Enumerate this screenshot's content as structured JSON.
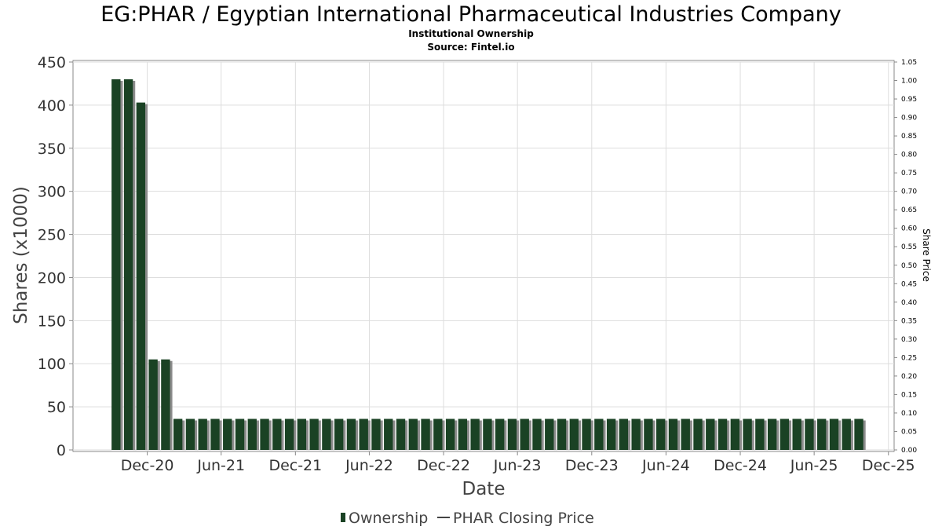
{
  "header": {
    "title": "EG:PHAR / Egyptian International Pharmaceutical Industries Company",
    "subtitle": "Institutional Ownership",
    "source": "Source: Fintel.io"
  },
  "legend": {
    "placement": "bottom-center",
    "items": [
      {
        "label": "Ownership",
        "icon": "bar-swatch-icon"
      },
      {
        "label": "PHAR Closing Price",
        "icon": "line-swatch-icon"
      }
    ]
  },
  "colors": {
    "bar": "#1a4224",
    "bar_shadow": "#8c8c8c",
    "grid": "#dddddd",
    "frame": "#888888"
  },
  "chart_data": {
    "type": "bar",
    "xlabel": "Date",
    "ylabel": "Shares (x1000)",
    "y2label": "Share Price",
    "grid": true,
    "ylim": [
      0,
      450
    ],
    "y2lim": [
      0,
      1.05
    ],
    "yticks": [
      "0",
      "50",
      "100",
      "150",
      "200",
      "250",
      "300",
      "350",
      "400",
      "450"
    ],
    "y2ticks": [
      "0.00",
      "0.05",
      "0.10",
      "0.15",
      "0.20",
      "0.25",
      "0.30",
      "0.35",
      "0.40",
      "0.45",
      "0.50",
      "0.55",
      "0.60",
      "0.65",
      "0.70",
      "0.75",
      "0.80",
      "0.85",
      "0.90",
      "0.95",
      "1.00",
      "1.05"
    ],
    "xlim": [
      "2020-06-01",
      "2025-12-15"
    ],
    "xticks": [
      {
        "label": "Dec-20",
        "date": "2020-12-01"
      },
      {
        "label": "Jun-21",
        "date": "2021-06-01"
      },
      {
        "label": "Dec-21",
        "date": "2021-12-01"
      },
      {
        "label": "Jun-22",
        "date": "2022-06-01"
      },
      {
        "label": "Dec-22",
        "date": "2022-12-01"
      },
      {
        "label": "Jun-23",
        "date": "2023-06-01"
      },
      {
        "label": "Dec-23",
        "date": "2023-12-01"
      },
      {
        "label": "Jun-24",
        "date": "2024-06-01"
      },
      {
        "label": "Dec-24",
        "date": "2024-12-01"
      },
      {
        "label": "Jun-25",
        "date": "2025-06-01"
      },
      {
        "label": "Dec-25",
        "date": "2025-12-01"
      }
    ],
    "series": [
      {
        "name": "Ownership",
        "start": "2020-09-15",
        "interval_days": 30.5,
        "values": [
          430,
          430,
          403,
          105,
          105,
          36,
          36,
          36,
          36,
          36,
          36,
          36,
          36,
          36,
          36,
          36,
          36,
          36,
          36,
          36,
          36,
          36,
          36,
          36,
          36,
          36,
          36,
          36,
          36,
          36,
          36,
          36,
          36,
          36,
          36,
          36,
          36,
          36,
          36,
          36,
          36,
          36,
          36,
          36,
          36,
          36,
          36,
          36,
          36,
          36,
          36,
          36,
          36,
          36,
          36,
          36,
          36,
          36,
          36,
          36,
          36
        ]
      },
      {
        "name": "PHAR Closing Price",
        "values": []
      }
    ]
  }
}
